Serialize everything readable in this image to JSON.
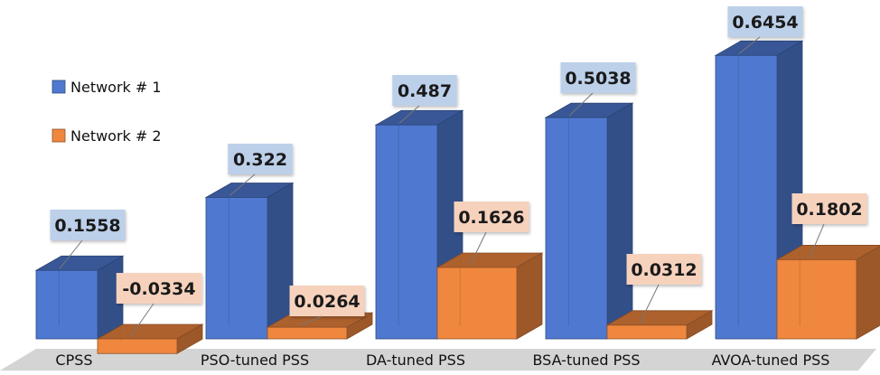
{
  "chart_data": {
    "type": "bar",
    "style": "3d-clustered",
    "categories": [
      "CPSS",
      "PSO-tuned PSS",
      "DA-tuned PSS",
      "BSA-tuned PSS",
      "AVOA-tuned PSS"
    ],
    "series": [
      {
        "name": "Network # 1",
        "color": "#4f79d1",
        "values": [
          0.1558,
          0.322,
          0.487,
          0.5038,
          0.6454
        ],
        "labels": [
          "0.1558",
          "0.322",
          "0.487",
          "0.5038",
          "0.6454"
        ],
        "label_bg": "#bcd0ea"
      },
      {
        "name": "Network # 2",
        "color": "#f0873f",
        "values": [
          -0.0334,
          0.0264,
          0.1626,
          0.0312,
          0.1802
        ],
        "labels": [
          "-0.0334",
          "0.0264",
          "0.1626",
          "0.0312",
          "0.1802"
        ],
        "label_bg": "#f6d2bd"
      }
    ],
    "title": "",
    "xlabel": "",
    "ylabel": "",
    "legend": "top-left",
    "grid": false
  }
}
